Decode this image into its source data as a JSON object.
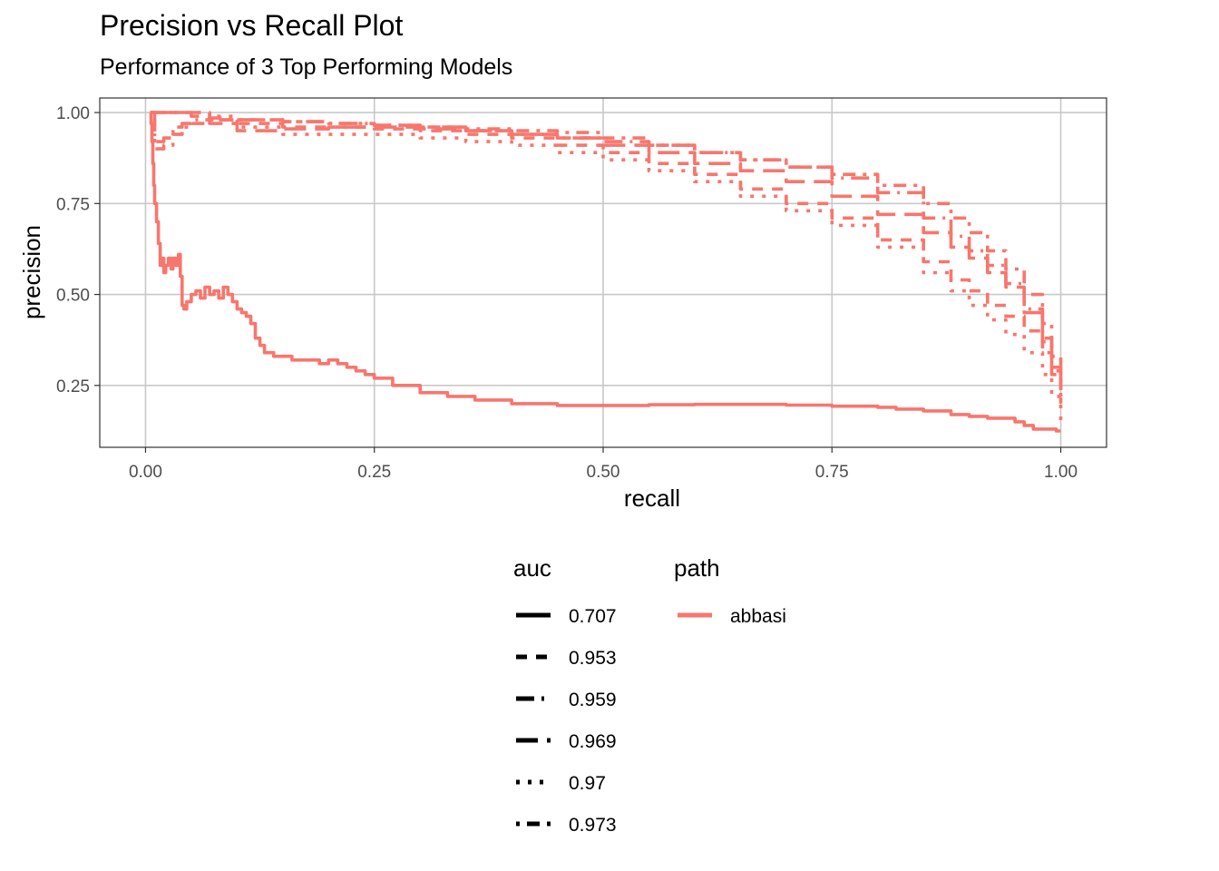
{
  "chart_data": {
    "type": "line",
    "title": "Precision vs Recall Plot",
    "subtitle": "Performance of 3 Top Performing Models",
    "xlabel": "recall",
    "ylabel": "precision",
    "xlim": [
      -0.05,
      1.05
    ],
    "ylim": [
      0.08,
      1.04
    ],
    "x_ticks": [
      "0.00",
      "0.25",
      "0.50",
      "0.75",
      "1.00"
    ],
    "y_ticks": [
      "0.25",
      "0.50",
      "0.75",
      "1.00"
    ],
    "grid": true,
    "legend_position": "bottom",
    "line_color": "#F8766D",
    "legend": {
      "auc_title": "auc",
      "auc_entries": [
        {
          "label": "0.707",
          "dash": "solid"
        },
        {
          "label": "0.953",
          "dash": "dashed"
        },
        {
          "label": "0.959",
          "dash": "longdash-dot"
        },
        {
          "label": "0.969",
          "dash": "longdash"
        },
        {
          "label": "0.97",
          "dash": "dotted"
        },
        {
          "label": "0.973",
          "dash": "dot-dash"
        }
      ],
      "path_title": "path",
      "path_entries": [
        {
          "label": "abbasi",
          "color": "#F8766D"
        }
      ]
    },
    "series": [
      {
        "auc": "0.707",
        "dash": "solid",
        "x": [
          0.005,
          0.006,
          0.007,
          0.008,
          0.009,
          0.01,
          0.012,
          0.014,
          0.016,
          0.018,
          0.02,
          0.022,
          0.025,
          0.028,
          0.03,
          0.033,
          0.036,
          0.038,
          0.04,
          0.042,
          0.045,
          0.05,
          0.055,
          0.06,
          0.065,
          0.07,
          0.075,
          0.08,
          0.085,
          0.09,
          0.095,
          0.1,
          0.105,
          0.11,
          0.115,
          0.12,
          0.125,
          0.13,
          0.14,
          0.15,
          0.16,
          0.17,
          0.18,
          0.19,
          0.2,
          0.21,
          0.22,
          0.23,
          0.24,
          0.25,
          0.27,
          0.3,
          0.33,
          0.36,
          0.4,
          0.45,
          0.5,
          0.55,
          0.6,
          0.65,
          0.7,
          0.75,
          0.8,
          0.82,
          0.85,
          0.88,
          0.9,
          0.92,
          0.95,
          0.96,
          0.97,
          0.98,
          0.99,
          0.995,
          1.0
        ],
        "y": [
          1.0,
          0.97,
          0.92,
          0.86,
          0.8,
          0.75,
          0.7,
          0.64,
          0.58,
          0.6,
          0.56,
          0.58,
          0.6,
          0.57,
          0.6,
          0.58,
          0.61,
          0.55,
          0.47,
          0.46,
          0.48,
          0.5,
          0.51,
          0.49,
          0.52,
          0.5,
          0.51,
          0.49,
          0.52,
          0.5,
          0.48,
          0.46,
          0.45,
          0.44,
          0.42,
          0.38,
          0.36,
          0.34,
          0.33,
          0.33,
          0.32,
          0.32,
          0.32,
          0.31,
          0.32,
          0.31,
          0.3,
          0.29,
          0.28,
          0.27,
          0.25,
          0.23,
          0.22,
          0.21,
          0.2,
          0.195,
          0.195,
          0.197,
          0.198,
          0.198,
          0.196,
          0.193,
          0.19,
          0.185,
          0.18,
          0.17,
          0.165,
          0.16,
          0.15,
          0.14,
          0.13,
          0.13,
          0.13,
          0.125,
          0.125
        ]
      },
      {
        "auc": "0.953",
        "dash": "dashed",
        "x": [
          0.005,
          0.01,
          0.02,
          0.03,
          0.04,
          0.05,
          0.07,
          0.1,
          0.15,
          0.2,
          0.25,
          0.3,
          0.35,
          0.4,
          0.45,
          0.5,
          0.55,
          0.6,
          0.65,
          0.7,
          0.75,
          0.8,
          0.85,
          0.88,
          0.9,
          0.92,
          0.94,
          0.96,
          0.98,
          0.99,
          1.0
        ],
        "y": [
          1.0,
          1.0,
          1.0,
          1.0,
          1.0,
          1.0,
          0.98,
          0.97,
          0.96,
          0.96,
          0.955,
          0.95,
          0.94,
          0.93,
          0.91,
          0.89,
          0.86,
          0.83,
          0.79,
          0.75,
          0.71,
          0.65,
          0.59,
          0.54,
          0.51,
          0.47,
          0.44,
          0.4,
          0.34,
          0.28,
          0.2
        ]
      },
      {
        "auc": "0.959",
        "dash": "longdash-dot",
        "x": [
          0.005,
          0.01,
          0.02,
          0.03,
          0.04,
          0.05,
          0.07,
          0.1,
          0.15,
          0.2,
          0.25,
          0.3,
          0.35,
          0.4,
          0.45,
          0.5,
          0.55,
          0.6,
          0.65,
          0.7,
          0.75,
          0.8,
          0.85,
          0.88,
          0.9,
          0.92,
          0.94,
          0.96,
          0.98,
          0.99,
          1.0
        ],
        "y": [
          1.0,
          0.92,
          0.93,
          0.96,
          0.97,
          0.98,
          0.985,
          0.98,
          0.975,
          0.97,
          0.965,
          0.96,
          0.95,
          0.94,
          0.93,
          0.92,
          0.91,
          0.89,
          0.87,
          0.85,
          0.82,
          0.78,
          0.71,
          0.66,
          0.62,
          0.58,
          0.53,
          0.46,
          0.38,
          0.3,
          0.22
        ]
      },
      {
        "auc": "0.969",
        "dash": "longdash",
        "x": [
          0.005,
          0.01,
          0.02,
          0.03,
          0.04,
          0.05,
          0.07,
          0.1,
          0.15,
          0.2,
          0.25,
          0.3,
          0.35,
          0.4,
          0.45,
          0.5,
          0.55,
          0.6,
          0.65,
          0.7,
          0.75,
          0.8,
          0.85,
          0.88,
          0.9,
          0.92,
          0.94,
          0.96,
          0.98,
          0.99,
          1.0
        ],
        "y": [
          1.0,
          1.0,
          1.0,
          1.0,
          1.0,
          0.99,
          0.97,
          0.95,
          0.955,
          0.96,
          0.96,
          0.955,
          0.95,
          0.94,
          0.93,
          0.91,
          0.89,
          0.86,
          0.84,
          0.81,
          0.77,
          0.72,
          0.67,
          0.63,
          0.6,
          0.56,
          0.52,
          0.45,
          0.37,
          0.29,
          0.21
        ]
      },
      {
        "auc": "0.97",
        "dash": "dotted",
        "x": [
          0.005,
          0.01,
          0.02,
          0.03,
          0.04,
          0.05,
          0.07,
          0.1,
          0.15,
          0.2,
          0.25,
          0.3,
          0.35,
          0.4,
          0.45,
          0.5,
          0.55,
          0.6,
          0.65,
          0.7,
          0.75,
          0.8,
          0.85,
          0.88,
          0.9,
          0.92,
          0.94,
          0.96,
          0.98,
          0.99,
          1.0
        ],
        "y": [
          1.0,
          1.0,
          1.0,
          1.0,
          1.0,
          1.0,
          0.99,
          0.96,
          0.94,
          0.94,
          0.94,
          0.93,
          0.92,
          0.91,
          0.89,
          0.87,
          0.84,
          0.81,
          0.77,
          0.73,
          0.69,
          0.63,
          0.56,
          0.51,
          0.47,
          0.43,
          0.39,
          0.34,
          0.28,
          0.22,
          0.15
        ]
      },
      {
        "auc": "0.973",
        "dash": "dot-dash",
        "x": [
          0.005,
          0.01,
          0.02,
          0.03,
          0.04,
          0.05,
          0.07,
          0.1,
          0.15,
          0.2,
          0.25,
          0.3,
          0.35,
          0.4,
          0.45,
          0.5,
          0.55,
          0.6,
          0.65,
          0.7,
          0.75,
          0.8,
          0.85,
          0.88,
          0.9,
          0.92,
          0.94,
          0.96,
          0.98,
          0.99,
          1.0
        ],
        "y": [
          1.0,
          0.9,
          0.91,
          0.94,
          0.96,
          0.97,
          0.98,
          0.98,
          0.975,
          0.97,
          0.965,
          0.96,
          0.955,
          0.95,
          0.945,
          0.93,
          0.91,
          0.89,
          0.87,
          0.85,
          0.83,
          0.8,
          0.75,
          0.71,
          0.67,
          0.62,
          0.57,
          0.5,
          0.42,
          0.33,
          0.24
        ]
      }
    ]
  }
}
